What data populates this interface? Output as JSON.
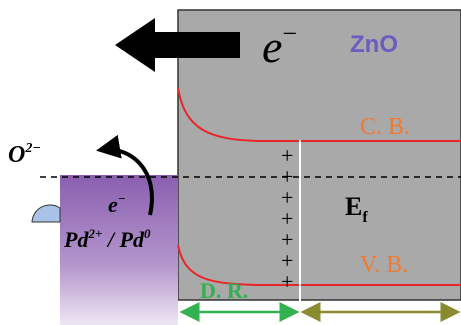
{
  "band": {
    "material": "ZnO",
    "electron_base": "e",
    "electron_sup": "−",
    "conduction_band": "C. B.",
    "valence_band": "V. B.",
    "fermi_base": "E",
    "fermi_sub": "f",
    "depletion": "D. R.",
    "plus_signs": [
      "+",
      "+",
      "+",
      "+",
      "+",
      "+",
      "+"
    ]
  },
  "surface": {
    "oxygen_base": "O",
    "oxygen_sup": "2−",
    "electron_base": "e",
    "electron_sup": "−",
    "pd_first": "Pd",
    "pd_first_sup": "2+",
    "separator": " / ",
    "pd_second": "Pd",
    "pd_second_sup": "0"
  }
}
